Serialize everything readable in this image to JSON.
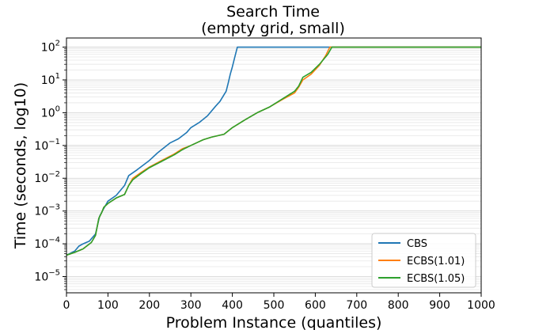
{
  "chart_data": {
    "type": "line",
    "title": "Search Time",
    "subtitle": "(empty grid, small)",
    "xlabel": "Problem Instance (quantiles)",
    "ylabel": "Time (seconds, log10)",
    "xlim": [
      0,
      1000
    ],
    "ylim": [
      3.2e-06,
      190
    ],
    "yscale": "log",
    "grid": "y-minor",
    "legend_position": "lower-right",
    "x_ticks": [
      "0",
      "100",
      "200",
      "300",
      "400",
      "500",
      "600",
      "700",
      "800",
      "900",
      "1000"
    ],
    "y_ticks": [
      {
        "mantissa": "10",
        "exp": "−5",
        "value": 1e-05
      },
      {
        "mantissa": "10",
        "exp": "−4",
        "value": 0.0001
      },
      {
        "mantissa": "10",
        "exp": "−3",
        "value": 0.001
      },
      {
        "mantissa": "10",
        "exp": "−2",
        "value": 0.01
      },
      {
        "mantissa": "10",
        "exp": "−1",
        "value": 0.1
      },
      {
        "mantissa": "10",
        "exp": "0",
        "value": 1
      },
      {
        "mantissa": "10",
        "exp": "1",
        "value": 10
      },
      {
        "mantissa": "10",
        "exp": "2",
        "value": 100
      }
    ],
    "series": [
      {
        "name": "CBS",
        "color": "#1f77b4",
        "points": [
          [
            0,
            4.5e-05
          ],
          [
            20,
            6e-05
          ],
          [
            30,
            8.5e-05
          ],
          [
            40,
            0.0001
          ],
          [
            55,
            0.00012
          ],
          [
            70,
            0.0002
          ],
          [
            80,
            0.0007
          ],
          [
            90,
            0.0012
          ],
          [
            100,
            0.002
          ],
          [
            120,
            0.003
          ],
          [
            140,
            0.006
          ],
          [
            150,
            0.012
          ],
          [
            170,
            0.018
          ],
          [
            200,
            0.035
          ],
          [
            220,
            0.06
          ],
          [
            250,
            0.12
          ],
          [
            270,
            0.16
          ],
          [
            290,
            0.25
          ],
          [
            300,
            0.35
          ],
          [
            320,
            0.5
          ],
          [
            340,
            0.8
          ],
          [
            360,
            1.6
          ],
          [
            370,
            2.2
          ],
          [
            385,
            4.5
          ],
          [
            390,
            8
          ],
          [
            395,
            15
          ],
          [
            400,
            25
          ],
          [
            405,
            45
          ],
          [
            412,
            100
          ],
          [
            1000,
            100
          ]
        ]
      },
      {
        "name": "ECBS(1.01)",
        "color": "#ff7f0e",
        "points": [
          [
            0,
            4.5e-05
          ],
          [
            20,
            5.5e-05
          ],
          [
            40,
            7e-05
          ],
          [
            60,
            0.00011
          ],
          [
            70,
            0.00018
          ],
          [
            78,
            0.0006
          ],
          [
            85,
            0.0009
          ],
          [
            90,
            0.0013
          ],
          [
            100,
            0.0017
          ],
          [
            120,
            0.0025
          ],
          [
            140,
            0.0032
          ],
          [
            150,
            0.006
          ],
          [
            160,
            0.01
          ],
          [
            180,
            0.015
          ],
          [
            200,
            0.022
          ],
          [
            230,
            0.035
          ],
          [
            260,
            0.055
          ],
          [
            280,
            0.08
          ],
          [
            300,
            0.1
          ],
          [
            330,
            0.15
          ],
          [
            350,
            0.18
          ],
          [
            380,
            0.22
          ],
          [
            400,
            0.35
          ],
          [
            430,
            0.6
          ],
          [
            460,
            1.0
          ],
          [
            490,
            1.5
          ],
          [
            520,
            2.5
          ],
          [
            550,
            4
          ],
          [
            560,
            6
          ],
          [
            570,
            10
          ],
          [
            590,
            15
          ],
          [
            610,
            28
          ],
          [
            625,
            55
          ],
          [
            635,
            100
          ],
          [
            1000,
            100
          ]
        ]
      },
      {
        "name": "ECBS(1.05)",
        "color": "#2ca02c",
        "points": [
          [
            0,
            4.5e-05
          ],
          [
            20,
            5.5e-05
          ],
          [
            40,
            7e-05
          ],
          [
            60,
            0.00011
          ],
          [
            70,
            0.00018
          ],
          [
            78,
            0.0006
          ],
          [
            85,
            0.0009
          ],
          [
            90,
            0.0013
          ],
          [
            100,
            0.0017
          ],
          [
            120,
            0.0025
          ],
          [
            140,
            0.0032
          ],
          [
            150,
            0.006
          ],
          [
            160,
            0.009
          ],
          [
            180,
            0.014
          ],
          [
            200,
            0.021
          ],
          [
            230,
            0.033
          ],
          [
            260,
            0.052
          ],
          [
            280,
            0.075
          ],
          [
            300,
            0.1
          ],
          [
            330,
            0.15
          ],
          [
            350,
            0.18
          ],
          [
            380,
            0.22
          ],
          [
            400,
            0.35
          ],
          [
            430,
            0.6
          ],
          [
            460,
            1.0
          ],
          [
            490,
            1.5
          ],
          [
            520,
            2.6
          ],
          [
            550,
            4.5
          ],
          [
            560,
            6.5
          ],
          [
            570,
            12
          ],
          [
            590,
            17
          ],
          [
            610,
            30
          ],
          [
            630,
            60
          ],
          [
            640,
            100
          ],
          [
            1000,
            100
          ]
        ]
      }
    ]
  }
}
